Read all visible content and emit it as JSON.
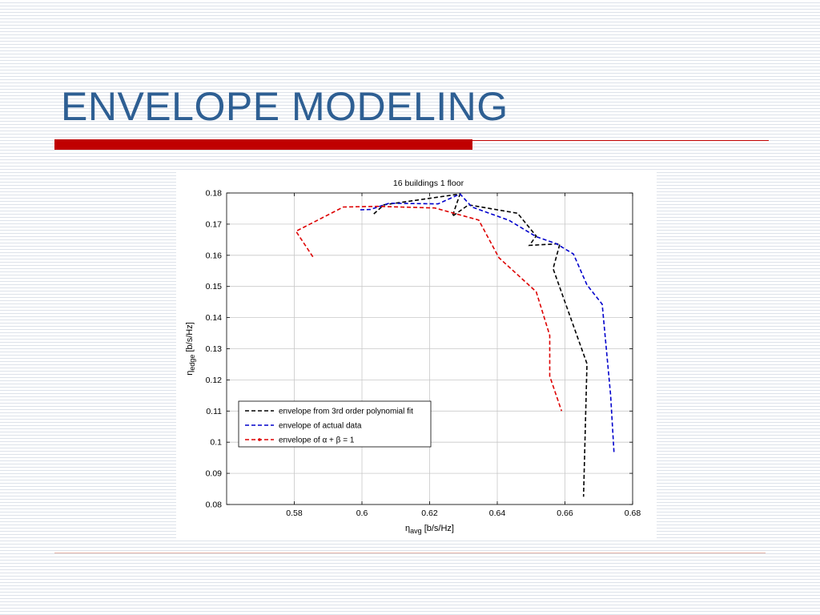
{
  "slide": {
    "title": "ENVELOPE MODELING"
  },
  "chart_data": {
    "type": "line",
    "title": "16 buildings 1 floor",
    "xlabel": {
      "symbol": "η",
      "sub": "avg",
      "unit": "[b/s/Hz]"
    },
    "ylabel": {
      "symbol": "η",
      "sub": "edge",
      "unit": "[b/s/Hz]"
    },
    "xlim": [
      0.56,
      0.68
    ],
    "ylim": [
      0.08,
      0.18
    ],
    "xticks": [
      0.58,
      0.6,
      0.62,
      0.64,
      0.66,
      0.68
    ],
    "yticks": [
      0.08,
      0.09,
      0.1,
      0.11,
      0.12,
      0.13,
      0.14,
      0.15,
      0.16,
      0.17,
      0.18
    ],
    "xtick_labels": [
      "0.58",
      "0.6",
      "0.62",
      "0.64",
      "0.66",
      "0.68"
    ],
    "ytick_labels": [
      "0.08",
      "0.09",
      "0.1",
      "0.11",
      "0.12",
      "0.13",
      "0.14",
      "0.15",
      "0.16",
      "0.17",
      "0.18"
    ],
    "grid": true,
    "legend_position": "lower-left",
    "series": [
      {
        "name": "envelope from 3rd order polynomial fit",
        "color": "#000000",
        "style": "dashed",
        "points": [
          [
            0.6035,
            0.1733
          ],
          [
            0.6065,
            0.1762
          ],
          [
            0.629,
            0.1797
          ],
          [
            0.6267,
            0.1725
          ],
          [
            0.6315,
            0.1762
          ],
          [
            0.646,
            0.1735
          ],
          [
            0.6515,
            0.1662
          ],
          [
            0.6495,
            0.1632
          ],
          [
            0.6585,
            0.1637
          ],
          [
            0.6565,
            0.1557
          ],
          [
            0.6665,
            0.1252
          ],
          [
            0.6655,
            0.0825
          ]
        ]
      },
      {
        "name": "envelope of actual data",
        "color": "#0000cc",
        "style": "dashed",
        "points": [
          [
            0.5995,
            0.1746
          ],
          [
            0.6025,
            0.1747
          ],
          [
            0.608,
            0.1767
          ],
          [
            0.6225,
            0.1765
          ],
          [
            0.629,
            0.1797
          ],
          [
            0.6325,
            0.1755
          ],
          [
            0.6435,
            0.1712
          ],
          [
            0.6515,
            0.166
          ],
          [
            0.6575,
            0.1637
          ],
          [
            0.6625,
            0.1604
          ],
          [
            0.6665,
            0.1505
          ],
          [
            0.671,
            0.1443
          ],
          [
            0.6735,
            0.1152
          ],
          [
            0.6745,
            0.0965
          ]
        ]
      },
      {
        "name": "envelope of α + β = 1",
        "color": "#dd0000",
        "style": "dashed",
        "points": [
          [
            0.5855,
            0.1595
          ],
          [
            0.5805,
            0.1677
          ],
          [
            0.5945,
            0.1755
          ],
          [
            0.6045,
            0.1757
          ],
          [
            0.6215,
            0.1752
          ],
          [
            0.6345,
            0.1713
          ],
          [
            0.6405,
            0.1592
          ],
          [
            0.6515,
            0.1483
          ],
          [
            0.6555,
            0.1343
          ],
          [
            0.6555,
            0.1212
          ],
          [
            0.659,
            0.11
          ]
        ]
      }
    ]
  }
}
